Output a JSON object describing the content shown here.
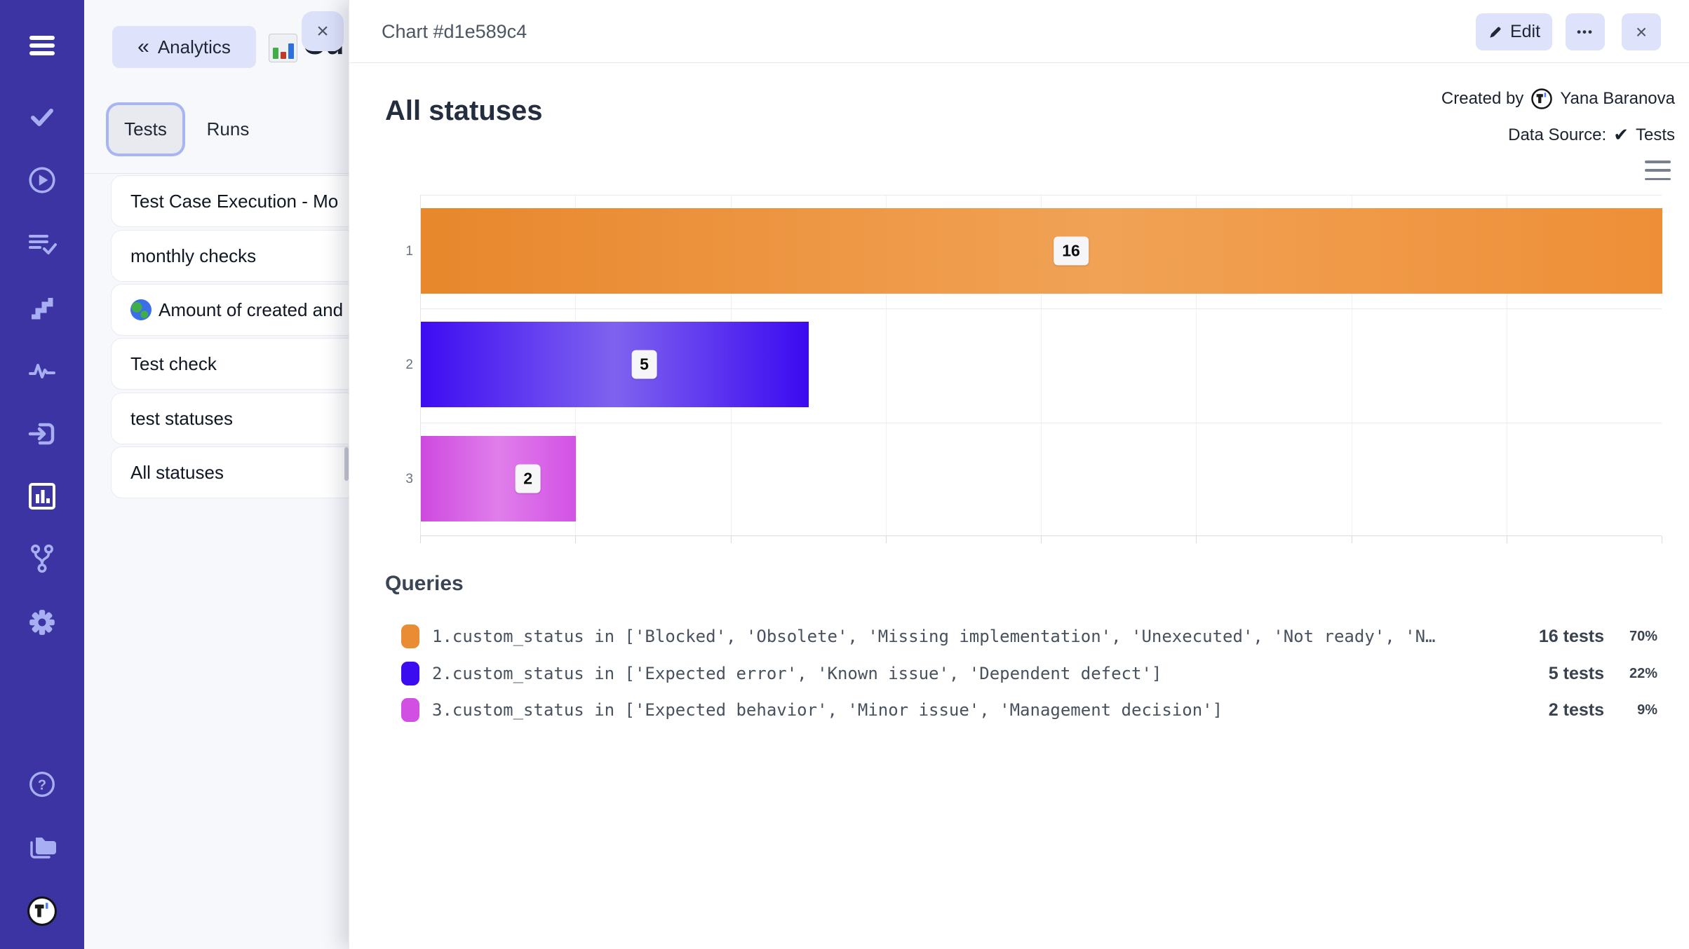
{
  "sidebar": {
    "items": [
      {
        "name": "menu",
        "icon": "hamburger-icon",
        "active": true
      },
      {
        "name": "tests",
        "icon": "check-icon"
      },
      {
        "name": "runs",
        "icon": "play-circle-icon"
      },
      {
        "name": "test-plans",
        "icon": "checklist-icon"
      },
      {
        "name": "steps",
        "icon": "stairs-icon"
      },
      {
        "name": "pulse",
        "icon": "activity-icon"
      },
      {
        "name": "import",
        "icon": "import-icon"
      },
      {
        "name": "analytics",
        "icon": "bar-chart-icon",
        "active": true
      },
      {
        "name": "branches",
        "icon": "branch-icon"
      },
      {
        "name": "settings",
        "icon": "gear-icon"
      }
    ],
    "footer": [
      {
        "name": "help",
        "icon": "question-circle-icon"
      },
      {
        "name": "projects",
        "icon": "folder-icon"
      },
      {
        "name": "account",
        "icon": "testomat-logo"
      }
    ],
    "logo_letter": "T"
  },
  "list_panel": {
    "back_button": {
      "label": "Analytics",
      "chevrons": "«"
    },
    "chart_emoji": "bar-chart-emoji",
    "clipped_title": "Cu",
    "close_icon": "×",
    "tabs": [
      {
        "label": "Tests",
        "active": true
      },
      {
        "label": "Runs",
        "active": false
      }
    ],
    "items": [
      {
        "label": "Test Case Execution - Mo"
      },
      {
        "label": "monthly checks"
      },
      {
        "label": "Amount of created and",
        "icon": "globe-icon"
      },
      {
        "label": "Test check"
      },
      {
        "label": "test statuses"
      },
      {
        "label": "All statuses"
      }
    ]
  },
  "main": {
    "header": {
      "title": "Chart #d1e589c4",
      "edit_label": "Edit",
      "more_icon": "•••",
      "close_icon": "×"
    },
    "meta": {
      "created_by_label": "Created by",
      "author": "Yana Baranova",
      "data_source_label": "Data Source:",
      "check_icon": "✔",
      "data_source_value": "Tests"
    },
    "chart_title": "All statuses",
    "queries": {
      "heading": "Queries",
      "rows": [
        {
          "color": "#ea8c33",
          "query": "1.custom_status in ['Blocked', 'Obsolete', 'Missing implementation', 'Unexecuted', 'Not ready', 'N…",
          "tests": "16 tests",
          "percent": "70%"
        },
        {
          "color": "#3c0cf1",
          "query": "2.custom_status in ['Expected error', 'Known issue', 'Dependent defect']",
          "tests": "5 tests",
          "percent": "22%"
        },
        {
          "color": "#d14fe2",
          "query": "3.custom_status in ['Expected behavior', 'Minor issue', 'Management decision']",
          "tests": "2 tests",
          "percent": "9%"
        }
      ]
    }
  },
  "chart_data": {
    "type": "bar",
    "orientation": "horizontal",
    "title": "All statuses",
    "categories": [
      "1",
      "2",
      "3"
    ],
    "values": [
      16,
      5,
      2
    ],
    "value_labels": [
      "16",
      "5",
      "2"
    ],
    "series": [
      {
        "name": "tests",
        "values": [
          16,
          5,
          2
        ]
      }
    ],
    "xlim": [
      0,
      16
    ],
    "gridline_step": 2,
    "grid": true,
    "legend": "none",
    "bar_colors": [
      "#ed9038",
      "#3d0df0",
      "#d350e2"
    ]
  }
}
